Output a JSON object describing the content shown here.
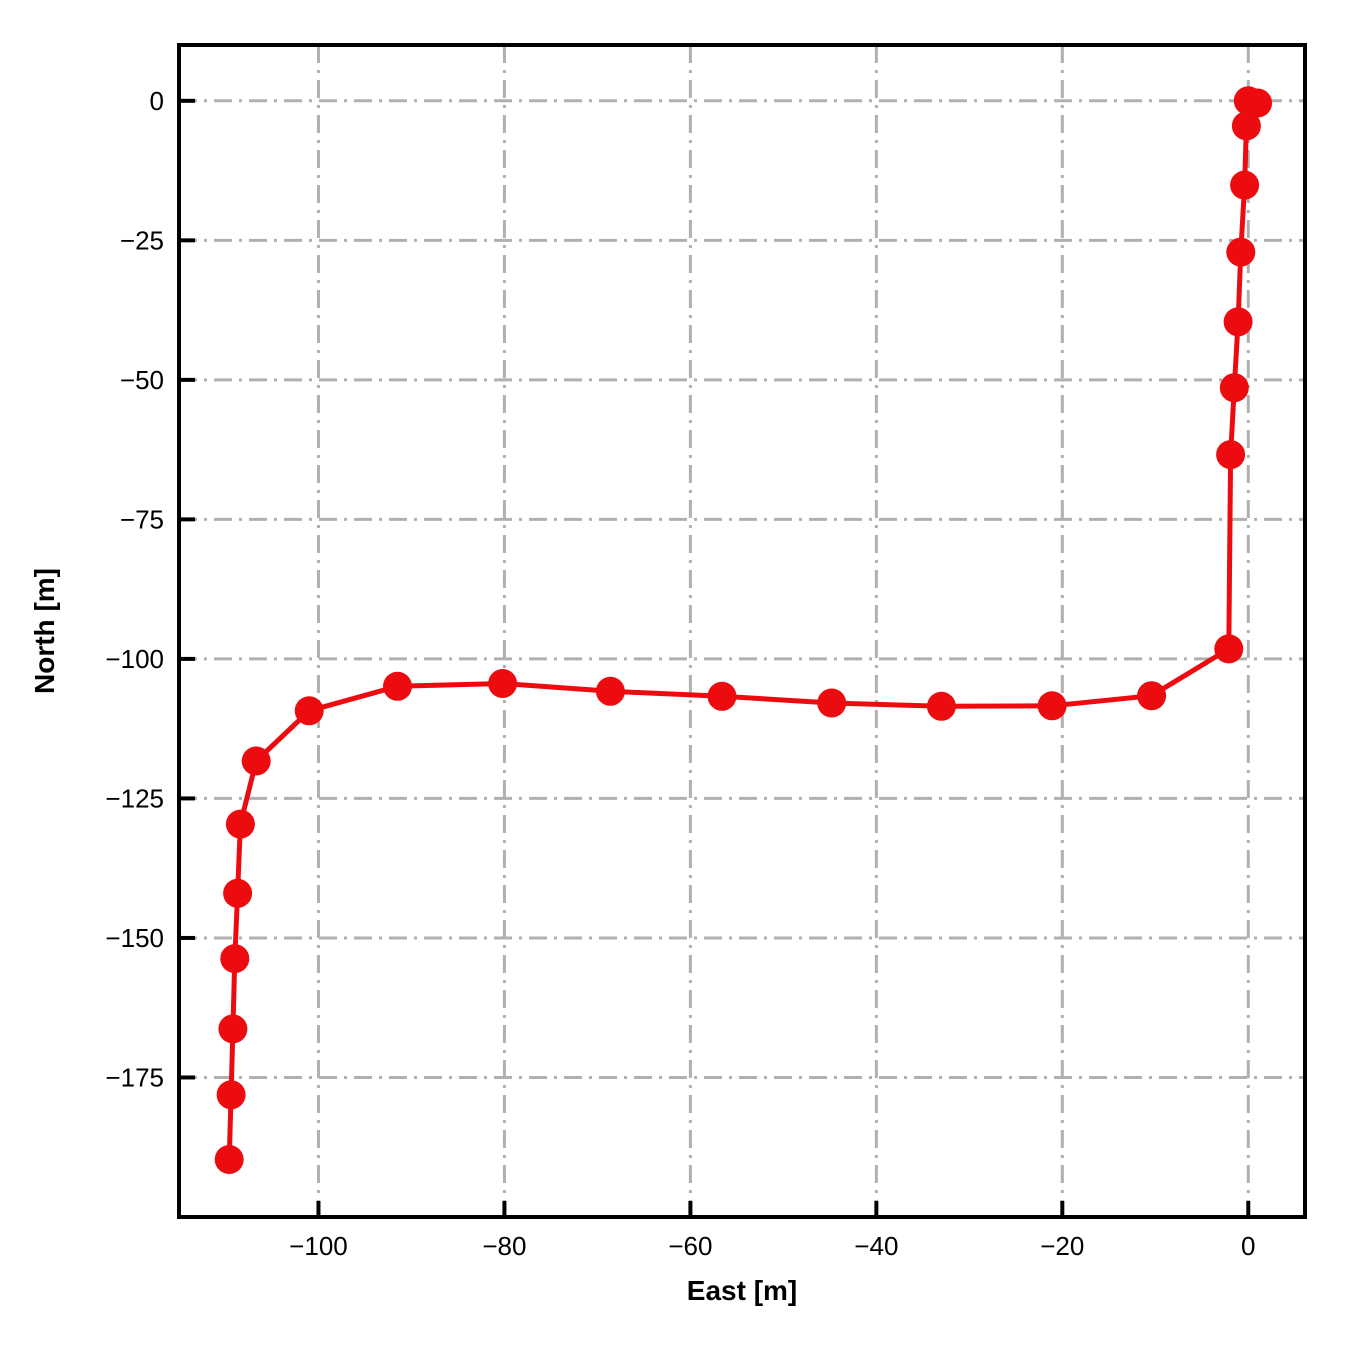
{
  "figure": {
    "background": "#ffffff",
    "title": ""
  },
  "chart_data": {
    "type": "line",
    "title": "",
    "xlabel": "East [m]",
    "ylabel": "North [m]",
    "xlim": [
      -115,
      6.1
    ],
    "ylim": [
      -200,
      10
    ],
    "xticks": [
      {
        "value": -100,
        "label": "−100"
      },
      {
        "value": -80,
        "label": "−80"
      },
      {
        "value": -60,
        "label": "−60"
      },
      {
        "value": -40,
        "label": "−40"
      },
      {
        "value": -20,
        "label": "−20"
      },
      {
        "value": 0,
        "label": "0"
      }
    ],
    "yticks": [
      {
        "value": 0,
        "label": "0"
      },
      {
        "value": -25,
        "label": "−25"
      },
      {
        "value": -50,
        "label": "−50"
      },
      {
        "value": -75,
        "label": "−75"
      },
      {
        "value": -100,
        "label": "−100"
      },
      {
        "value": -125,
        "label": "−125"
      },
      {
        "value": -150,
        "label": "−150"
      },
      {
        "value": -175,
        "label": "−175"
      }
    ],
    "grid": {
      "visible": true,
      "style": "dash-dot",
      "color": "#b0b0b0",
      "width": 3
    },
    "axis_color": "#000000",
    "legend_position": "none",
    "series": [
      {
        "color": "#ec0c10",
        "marker": "circle",
        "marker_radius": 14.5,
        "line_width": 5,
        "points": [
          [
            0.0,
            0.0
          ],
          [
            1.0,
            -0.4
          ],
          [
            -0.2,
            -4.5
          ],
          [
            -0.4,
            -15.1
          ],
          [
            -0.8,
            -27.1
          ],
          [
            -1.1,
            -39.6
          ],
          [
            -1.5,
            -51.4
          ],
          [
            -1.9,
            -63.4
          ],
          [
            -2.1,
            -98.2
          ],
          [
            -10.4,
            -106.6
          ],
          [
            -21.1,
            -108.4
          ],
          [
            -33.0,
            -108.5
          ],
          [
            -44.8,
            -107.9
          ],
          [
            -56.6,
            -106.7
          ],
          [
            -68.6,
            -105.8
          ],
          [
            -80.2,
            -104.4
          ],
          [
            -91.5,
            -104.9
          ],
          [
            -101.0,
            -109.3
          ],
          [
            -106.7,
            -118.3
          ],
          [
            -108.4,
            -129.6
          ],
          [
            -108.7,
            -142.0
          ],
          [
            -109.0,
            -153.7
          ],
          [
            -109.2,
            -166.3
          ],
          [
            -109.4,
            -178.1
          ],
          [
            -109.6,
            -189.7
          ]
        ]
      }
    ]
  }
}
